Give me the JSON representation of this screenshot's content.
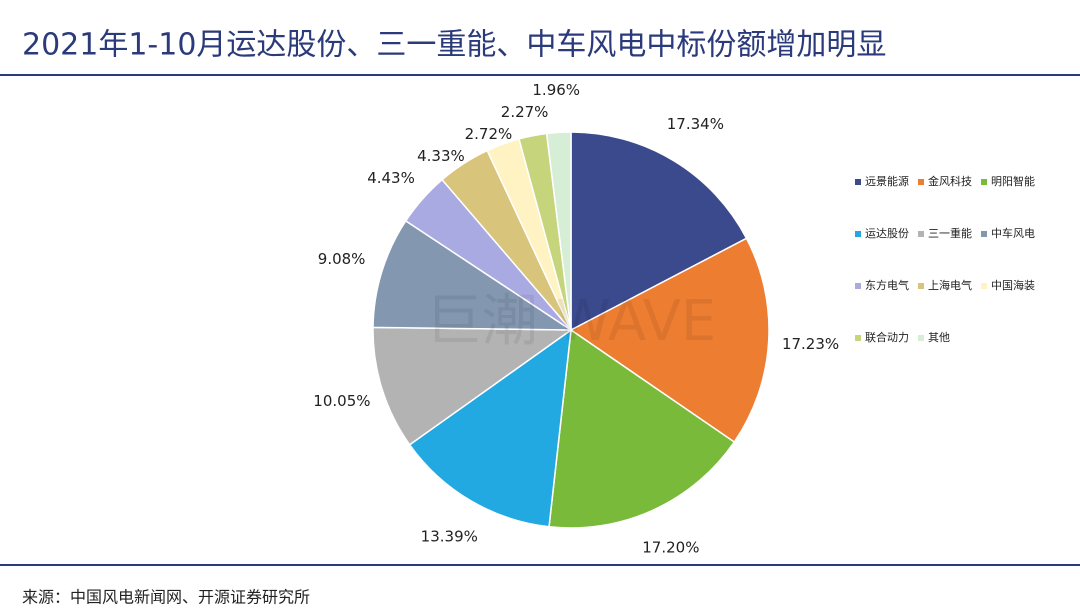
{
  "title": "2021年1-10月运达股份、三一重能、中车风电中标份额增加明显",
  "source": "来源：中国风电新闻网、开源证券研究所",
  "watermark": "巨潮 WAVE",
  "chart_data": {
    "type": "pie",
    "categories": [
      "远景能源",
      "金风科技",
      "明阳智能",
      "运达股份",
      "三一重能",
      "中车风电",
      "东方电气",
      "上海电气",
      "中国海装",
      "联合动力",
      "其他"
    ],
    "values": [
      17.34,
      17.23,
      17.2,
      13.39,
      10.05,
      9.08,
      4.43,
      4.33,
      2.72,
      2.27,
      1.96
    ],
    "value_labels": [
      "17.34%",
      "17.23%",
      "17.20%",
      "13.39%",
      "10.05%",
      "9.08%",
      "4.43%",
      "4.33%",
      "2.72%",
      "2.27%",
      "1.96%"
    ],
    "colors": [
      "#3b4a8c",
      "#ed7d31",
      "#7aba3a",
      "#22a9e1",
      "#b3b3b3",
      "#8497b0",
      "#aaaae2",
      "#d9c47c",
      "#fff2c3",
      "#c6d47c",
      "#d6edd6"
    ],
    "legend": "right"
  }
}
